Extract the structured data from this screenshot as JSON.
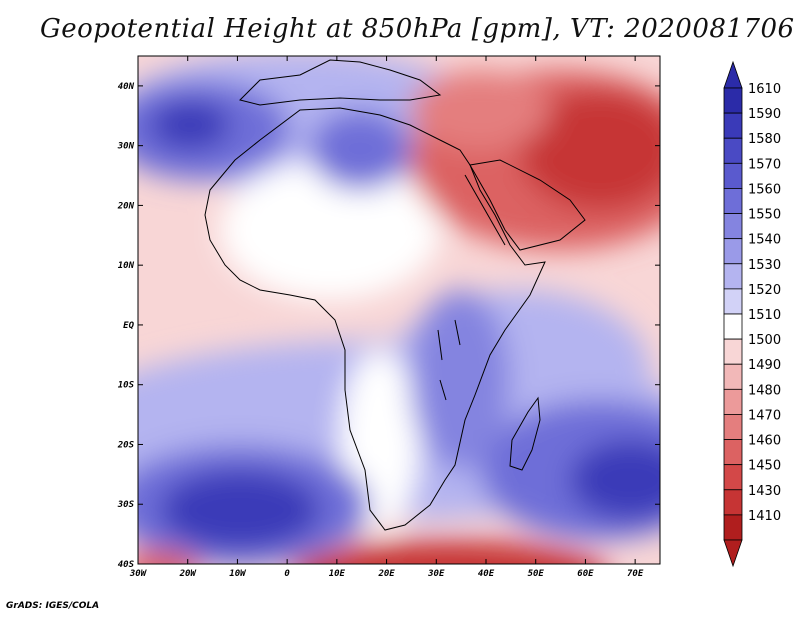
{
  "title": "Geopotential Height at 850hPa [gpm], VT: 2020081706",
  "credit": "GrADS: IGES/COLA",
  "map": {
    "lon_range": [
      -30,
      75
    ],
    "lat_range": [
      -40,
      45
    ],
    "x_ticks": [
      "30W",
      "20W",
      "10W",
      "0",
      "10E",
      "20E",
      "30E",
      "40E",
      "50E",
      "60E",
      "70E"
    ],
    "y_ticks": [
      "40N",
      "30N",
      "20N",
      "10N",
      "EQ",
      "10S",
      "20S",
      "30S",
      "40S"
    ]
  },
  "colorbar": {
    "levels": [
      "1610",
      "1590",
      "1580",
      "1570",
      "1560",
      "1550",
      "1540",
      "1530",
      "1520",
      "1510",
      "1500",
      "1490",
      "1480",
      "1470",
      "1460",
      "1450",
      "1430",
      "1410"
    ],
    "colors": [
      "#2b2ba8",
      "#3a3ab8",
      "#4a4ac4",
      "#5a5ace",
      "#6e6ed8",
      "#8484e0",
      "#9a9ae8",
      "#b4b4f0",
      "#d2d2f7",
      "#ffffff",
      "#f8d6d6",
      "#f2b8b8",
      "#ec9a9a",
      "#e47e7e",
      "#dc6262",
      "#d34848",
      "#c63434",
      "#b01e1e"
    ]
  }
}
